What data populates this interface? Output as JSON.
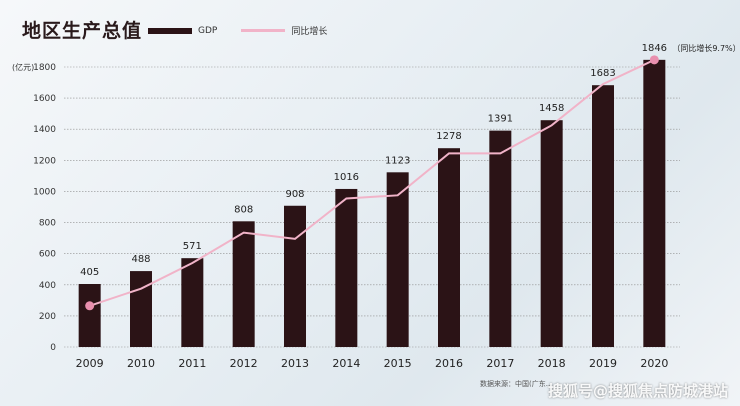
{
  "colors": {
    "bar": "#2b1316",
    "line": "#f1b3c8",
    "dot": "#e98fae",
    "grid": "#8f8f8f"
  },
  "chart_data": {
    "type": "bar",
    "title": "地区生产总值",
    "ylabel": "(亿元)",
    "xlabel": "",
    "categories": [
      "2009",
      "2010",
      "2011",
      "2012",
      "2013",
      "2014",
      "2015",
      "2016",
      "2017",
      "2018",
      "2019",
      "2020"
    ],
    "series": [
      {
        "name": "GDP",
        "type": "bar",
        "values": [
          405,
          488,
          571,
          808,
          908,
          1016,
          1123,
          1278,
          1391,
          1458,
          1683,
          1846
        ]
      },
      {
        "name": "同比增长",
        "type": "line",
        "values": [
          265,
          375,
          540,
          735,
          695,
          955,
          975,
          1245,
          1245,
          1425,
          1690,
          1846
        ]
      }
    ],
    "ylim": [
      0,
      1800
    ],
    "yticks": [
      0,
      200,
      400,
      600,
      800,
      1000,
      1200,
      1400,
      1600,
      1800
    ],
    "grid": true,
    "legend": "top-left",
    "annotations": [
      {
        "text": "（同比增长9.7%）"
      }
    ]
  },
  "footer": {
    "source": "数据来源：中国(广东...",
    "watermark": "搜狐号@搜狐焦点防城港站"
  }
}
